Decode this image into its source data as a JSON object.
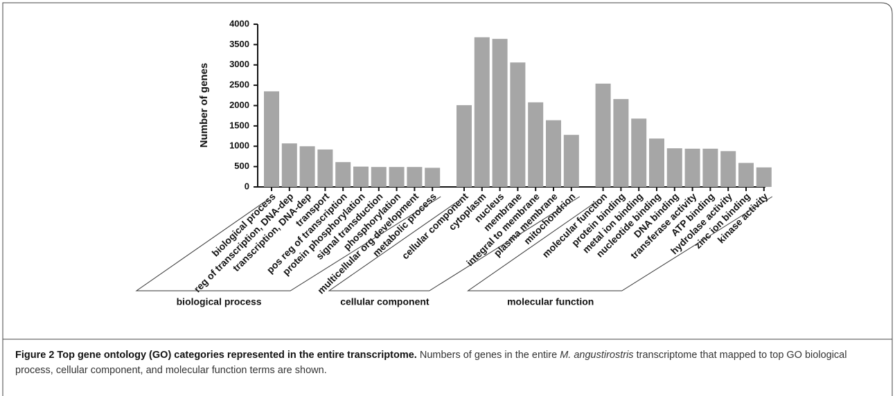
{
  "chart_data": {
    "type": "bar",
    "y_label": "Number of genes",
    "color": "#a6a6a6",
    "ylim": [
      0,
      4000
    ],
    "yticks": [
      0,
      500,
      1000,
      1500,
      2000,
      2500,
      3000,
      3500,
      4000
    ],
    "groups": [
      {
        "name": "biological process",
        "categories": [
          "biological process",
          "reg of transcription, DNA-dep",
          "transcription, DNA-dep",
          "transport",
          "pos reg of transcription",
          "protein phosphorylation",
          "signal transduction",
          "phosphorylation",
          "multicellular org development",
          "metabolic process"
        ],
        "values": [
          2350,
          1070,
          1000,
          920,
          610,
          500,
          490,
          490,
          490,
          470
        ]
      },
      {
        "name": "cellular component",
        "categories": [
          "cellular component",
          "cytoplasm",
          "nucleus",
          "membrane",
          "integral to membrane",
          "plasma membrane",
          "mitochondrion"
        ],
        "values": [
          2010,
          3680,
          3640,
          3060,
          2080,
          1640,
          1280
        ]
      },
      {
        "name": "molecular function",
        "categories": [
          "molecular function",
          "protein binding",
          "metal ion binding",
          "nucleotide binding",
          "DNA binding",
          "transferase activity",
          "ATP binding",
          "hydrolase activity",
          "zinc ion binding",
          "kinase activity"
        ],
        "values": [
          2540,
          2160,
          1680,
          1190,
          950,
          940,
          940,
          880,
          590,
          480
        ]
      }
    ]
  },
  "caption": {
    "label": "Figure 2 Top gene ontology (GO) categories represented in the entire transcriptome.",
    "text_before": "Numbers of genes in the entire",
    "species": "M. angustirostris",
    "text_after": "transcriptome that mapped to top GO biological process, cellular component, and molecular function terms are shown."
  }
}
